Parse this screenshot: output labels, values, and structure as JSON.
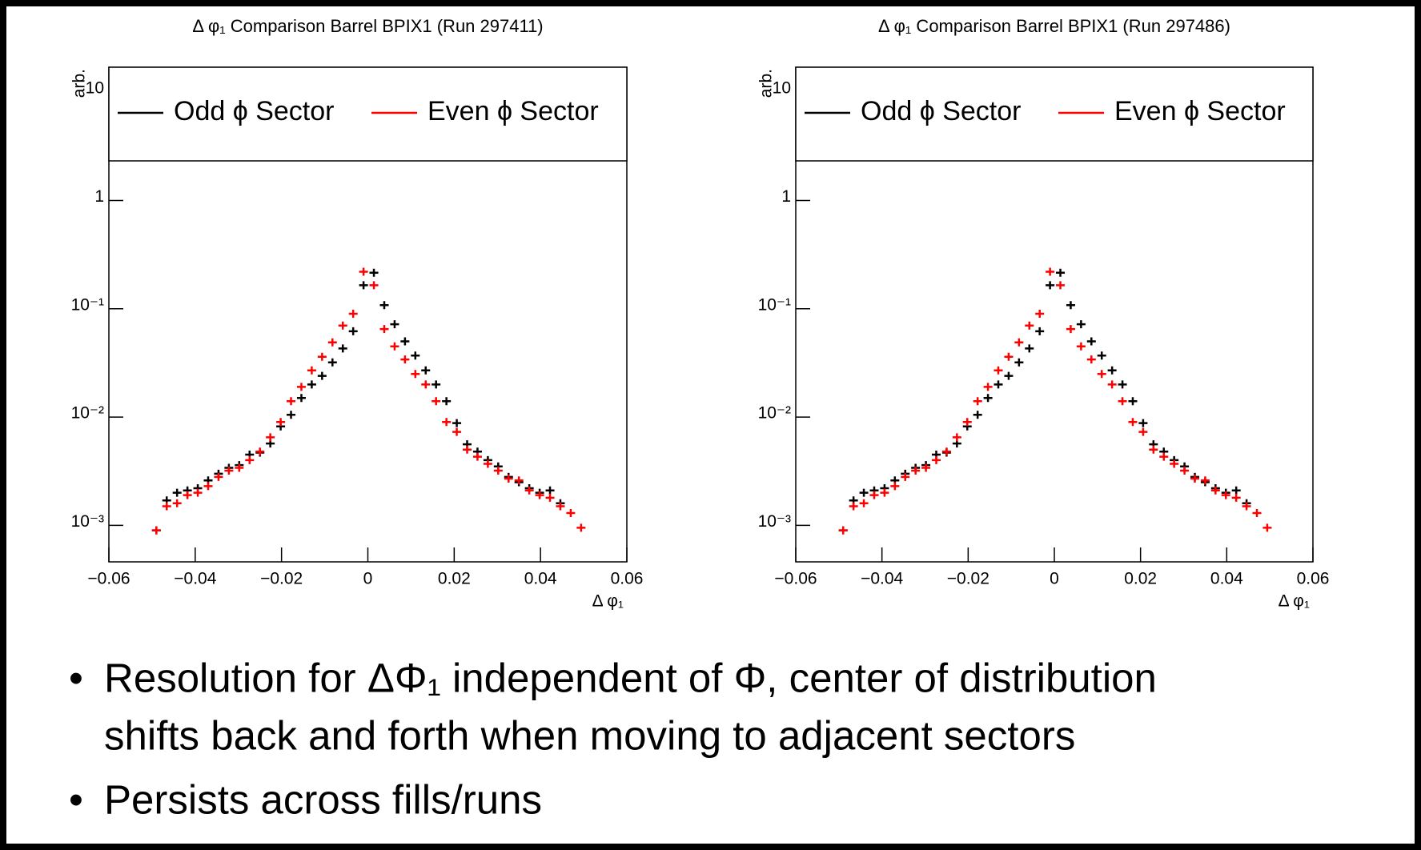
{
  "chart_data": [
    {
      "type": "scatter",
      "title": "Δ φ₁ Comparison Barrel BPIX1 (Run 297411)",
      "x_label": "Δ φ₁",
      "y_label": "arb.",
      "ylog": true,
      "grid": false,
      "xlim": [
        -0.06,
        0.06
      ],
      "xticks": [
        {
          "value": -0.06,
          "label": "−0.06"
        },
        {
          "value": -0.04,
          "label": "−0.04"
        },
        {
          "value": -0.02,
          "label": "−0.02"
        },
        0,
        0.02,
        0.04,
        0.06
      ],
      "ylim": [
        0.00046,
        17
      ],
      "yticks": [
        {
          "value": 0.001,
          "label": "10⁻³"
        },
        {
          "value": 0.01,
          "label": "10⁻²"
        },
        {
          "value": 0.1,
          "label": "10⁻¹"
        },
        1,
        10
      ],
      "series": [
        {
          "name": "Odd ϕ Sector",
          "color": "#000000",
          "x": [
            -0.049,
            -0.0466,
            -0.0442,
            -0.0418,
            -0.0394,
            -0.037,
            -0.0346,
            -0.0322,
            -0.0298,
            -0.0274,
            -0.025,
            -0.0226,
            -0.0202,
            -0.0178,
            -0.0154,
            -0.013,
            -0.0106,
            -0.0082,
            -0.0058,
            -0.0034,
            -0.001,
            0.0014,
            0.0038,
            0.0062,
            0.0086,
            0.011,
            0.0134,
            0.0158,
            0.0182,
            0.0206,
            0.023,
            0.0254,
            0.0278,
            0.0302,
            0.0326,
            0.035,
            0.0374,
            0.0398,
            0.0422,
            0.0446
          ],
          "values": [
            0.0009,
            0.0017,
            0.002,
            0.0021,
            0.0022,
            0.0026,
            0.003,
            0.0034,
            0.0036,
            0.0045,
            0.0047,
            0.0057,
            0.0082,
            0.0105,
            0.015,
            0.02,
            0.024,
            0.032,
            0.043,
            0.062,
            0.165,
            0.215,
            0.108,
            0.072,
            0.05,
            0.037,
            0.027,
            0.02,
            0.014,
            0.0088,
            0.0056,
            0.0048,
            0.004,
            0.0035,
            0.0028,
            0.0025,
            0.0022,
            0.002,
            0.0021,
            0.0016
          ]
        },
        {
          "name": "Even ϕ Sector",
          "color": "#ff0000",
          "x": [
            -0.049,
            -0.0466,
            -0.0442,
            -0.0418,
            -0.0394,
            -0.037,
            -0.0346,
            -0.0322,
            -0.0298,
            -0.0274,
            -0.025,
            -0.0226,
            -0.0202,
            -0.0178,
            -0.0154,
            -0.013,
            -0.0106,
            -0.0082,
            -0.0058,
            -0.0034,
            -0.001,
            0.0014,
            0.0038,
            0.0062,
            0.0086,
            0.011,
            0.0134,
            0.0158,
            0.0182,
            0.0206,
            0.023,
            0.0254,
            0.0278,
            0.0302,
            0.0326,
            0.035,
            0.0374,
            0.0398,
            0.0422,
            0.0446,
            0.047,
            0.0494
          ],
          "values": [
            0.0009,
            0.0015,
            0.0016,
            0.0019,
            0.002,
            0.0023,
            0.0028,
            0.0032,
            0.0034,
            0.004,
            0.0048,
            0.0065,
            0.009,
            0.014,
            0.019,
            0.027,
            0.036,
            0.049,
            0.07,
            0.09,
            0.22,
            0.165,
            0.065,
            0.045,
            0.034,
            0.025,
            0.02,
            0.014,
            0.009,
            0.0073,
            0.005,
            0.0043,
            0.0037,
            0.0032,
            0.0027,
            0.0026,
            0.0021,
            0.0019,
            0.0018,
            0.0015,
            0.0013,
            0.00095
          ]
        }
      ]
    },
    {
      "type": "scatter",
      "title": "Δ φ₁ Comparison Barrel BPIX1 (Run 297486)",
      "x_label": "Δ φ₁",
      "y_label": "arb.",
      "ylog": true,
      "grid": false,
      "xlim": [
        -0.06,
        0.06
      ],
      "xticks": [
        {
          "value": -0.06,
          "label": "−0.06"
        },
        {
          "value": -0.04,
          "label": "−0.04"
        },
        {
          "value": -0.02,
          "label": "−0.02"
        },
        0,
        0.02,
        0.04,
        0.06
      ],
      "ylim": [
        0.00046,
        17
      ],
      "yticks": [
        {
          "value": 0.001,
          "label": "10⁻³"
        },
        {
          "value": 0.01,
          "label": "10⁻²"
        },
        {
          "value": 0.1,
          "label": "10⁻¹"
        },
        1,
        10
      ],
      "series": [
        {
          "name": "Odd ϕ Sector",
          "color": "#000000",
          "x": [
            -0.049,
            -0.0466,
            -0.0442,
            -0.0418,
            -0.0394,
            -0.037,
            -0.0346,
            -0.0322,
            -0.0298,
            -0.0274,
            -0.025,
            -0.0226,
            -0.0202,
            -0.0178,
            -0.0154,
            -0.013,
            -0.0106,
            -0.0082,
            -0.0058,
            -0.0034,
            -0.001,
            0.0014,
            0.0038,
            0.0062,
            0.0086,
            0.011,
            0.0134,
            0.0158,
            0.0182,
            0.0206,
            0.023,
            0.0254,
            0.0278,
            0.0302,
            0.0326,
            0.035,
            0.0374,
            0.0398,
            0.0422,
            0.0446
          ],
          "values": [
            0.0009,
            0.0017,
            0.002,
            0.0021,
            0.0022,
            0.0026,
            0.003,
            0.0034,
            0.0036,
            0.0045,
            0.0047,
            0.0057,
            0.0082,
            0.0105,
            0.015,
            0.02,
            0.024,
            0.032,
            0.043,
            0.062,
            0.165,
            0.215,
            0.108,
            0.072,
            0.05,
            0.037,
            0.027,
            0.02,
            0.014,
            0.0088,
            0.0056,
            0.0048,
            0.004,
            0.0035,
            0.0028,
            0.0025,
            0.0022,
            0.002,
            0.0021,
            0.0016
          ]
        },
        {
          "name": "Even ϕ Sector",
          "color": "#ff0000",
          "x": [
            -0.049,
            -0.0466,
            -0.0442,
            -0.0418,
            -0.0394,
            -0.037,
            -0.0346,
            -0.0322,
            -0.0298,
            -0.0274,
            -0.025,
            -0.0226,
            -0.0202,
            -0.0178,
            -0.0154,
            -0.013,
            -0.0106,
            -0.0082,
            -0.0058,
            -0.0034,
            -0.001,
            0.0014,
            0.0038,
            0.0062,
            0.0086,
            0.011,
            0.0134,
            0.0158,
            0.0182,
            0.0206,
            0.023,
            0.0254,
            0.0278,
            0.0302,
            0.0326,
            0.035,
            0.0374,
            0.0398,
            0.0422,
            0.0446,
            0.047,
            0.0494
          ],
          "values": [
            0.0009,
            0.0015,
            0.0016,
            0.0019,
            0.002,
            0.0023,
            0.0028,
            0.0032,
            0.0034,
            0.004,
            0.0048,
            0.0065,
            0.009,
            0.014,
            0.019,
            0.027,
            0.036,
            0.049,
            0.07,
            0.09,
            0.22,
            0.165,
            0.065,
            0.045,
            0.034,
            0.025,
            0.02,
            0.014,
            0.009,
            0.0073,
            0.005,
            0.0043,
            0.0037,
            0.0032,
            0.0027,
            0.0026,
            0.0021,
            0.0019,
            0.0018,
            0.0015,
            0.0013,
            0.00095
          ]
        }
      ]
    }
  ],
  "bullets": [
    [
      "Resolution for ΔΦ₁ independent of Φ, center of distribution",
      "shifts back and forth when moving to adjacent sectors"
    ],
    [
      "Persists across fills/runs"
    ]
  ]
}
